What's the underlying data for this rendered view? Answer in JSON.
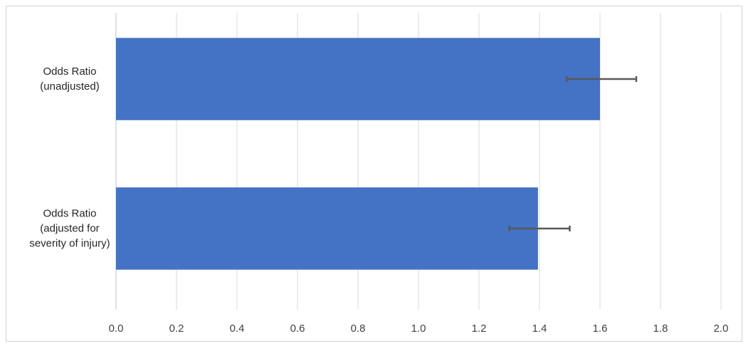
{
  "chart_data": {
    "type": "hbar",
    "categories": [
      "Odds Ratio\n(unadjusted)",
      "Odds Ratio\n(adjusted for\nseverity of injury)"
    ],
    "values": [
      1.6,
      1.395
    ],
    "ci_lower": [
      1.49,
      1.3
    ],
    "ci_upper": [
      1.72,
      1.5
    ],
    "color": "#4472c4",
    "error_color": "#595959",
    "xlim": [
      0,
      2
    ],
    "xticks": [
      {
        "value": 0,
        "label": "0.0"
      },
      0.2,
      0.4,
      0.6,
      0.8,
      {
        "value": 1,
        "label": "1.0"
      },
      1.2,
      1.4,
      1.6,
      1.8,
      {
        "value": 2,
        "label": "2.0"
      }
    ],
    "grid": true
  }
}
